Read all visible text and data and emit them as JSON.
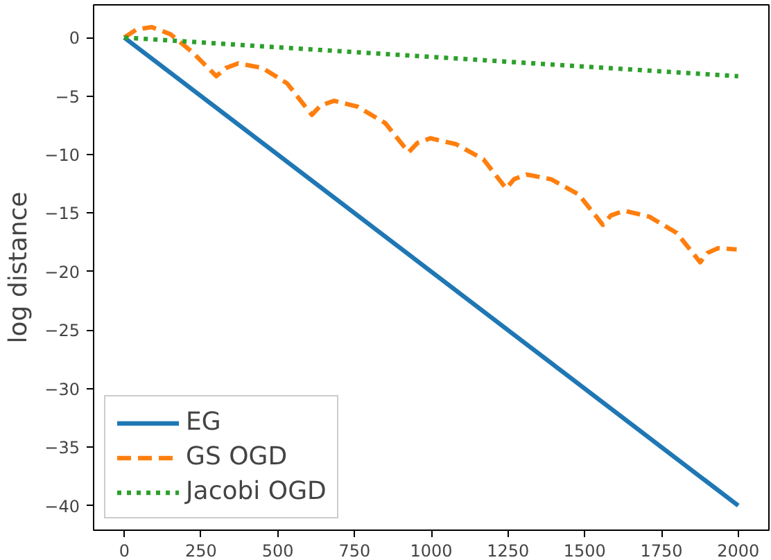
{
  "chart_data": {
    "type": "line",
    "ylabel": "log distance",
    "xlim": [
      -100,
      2100
    ],
    "ylim": [
      -42.1,
      2.8
    ],
    "xticks": [
      0,
      250,
      500,
      750,
      1000,
      1250,
      1500,
      1750,
      2000
    ],
    "yticks": [
      0,
      -5,
      -10,
      -15,
      -20,
      -25,
      -30,
      -35,
      -40
    ],
    "grid": false,
    "legend": "bottom left",
    "series": [
      {
        "name": "EG",
        "color": "#1f77b4",
        "line_style": "solid",
        "x": [
          0,
          2000
        ],
        "values": [
          0,
          -40
        ]
      },
      {
        "name": "GS OGD",
        "color": "#ff7f0e",
        "line_style": "dashed",
        "x": [
          0,
          40,
          89,
          150,
          220,
          300,
          330,
          371,
          450,
          530,
          611,
          640,
          683,
          760,
          850,
          926,
          955,
          997,
          1080,
          1170,
          1244,
          1270,
          1310,
          1390,
          1480,
          1559,
          1585,
          1629,
          1710,
          1800,
          1876,
          1900,
          1934,
          1995
        ],
        "values": [
          0,
          0.7,
          0.9,
          0.3,
          -1.2,
          -3.3,
          -2.6,
          -2.2,
          -2.6,
          -3.9,
          -6.6,
          -5.8,
          -5.4,
          -5.9,
          -7.3,
          -9.8,
          -9.0,
          -8.6,
          -9.1,
          -10.4,
          -12.9,
          -12.1,
          -11.7,
          -12.1,
          -13.4,
          -16.0,
          -15.2,
          -14.8,
          -15.3,
          -16.7,
          -19.2,
          -18.4,
          -18.0,
          -18.1
        ]
      },
      {
        "name": "Jacobi OGD",
        "color": "#2ca02c",
        "line_style": "dotted",
        "x": [
          0,
          2000
        ],
        "values": [
          0,
          -3.3
        ]
      }
    ]
  }
}
